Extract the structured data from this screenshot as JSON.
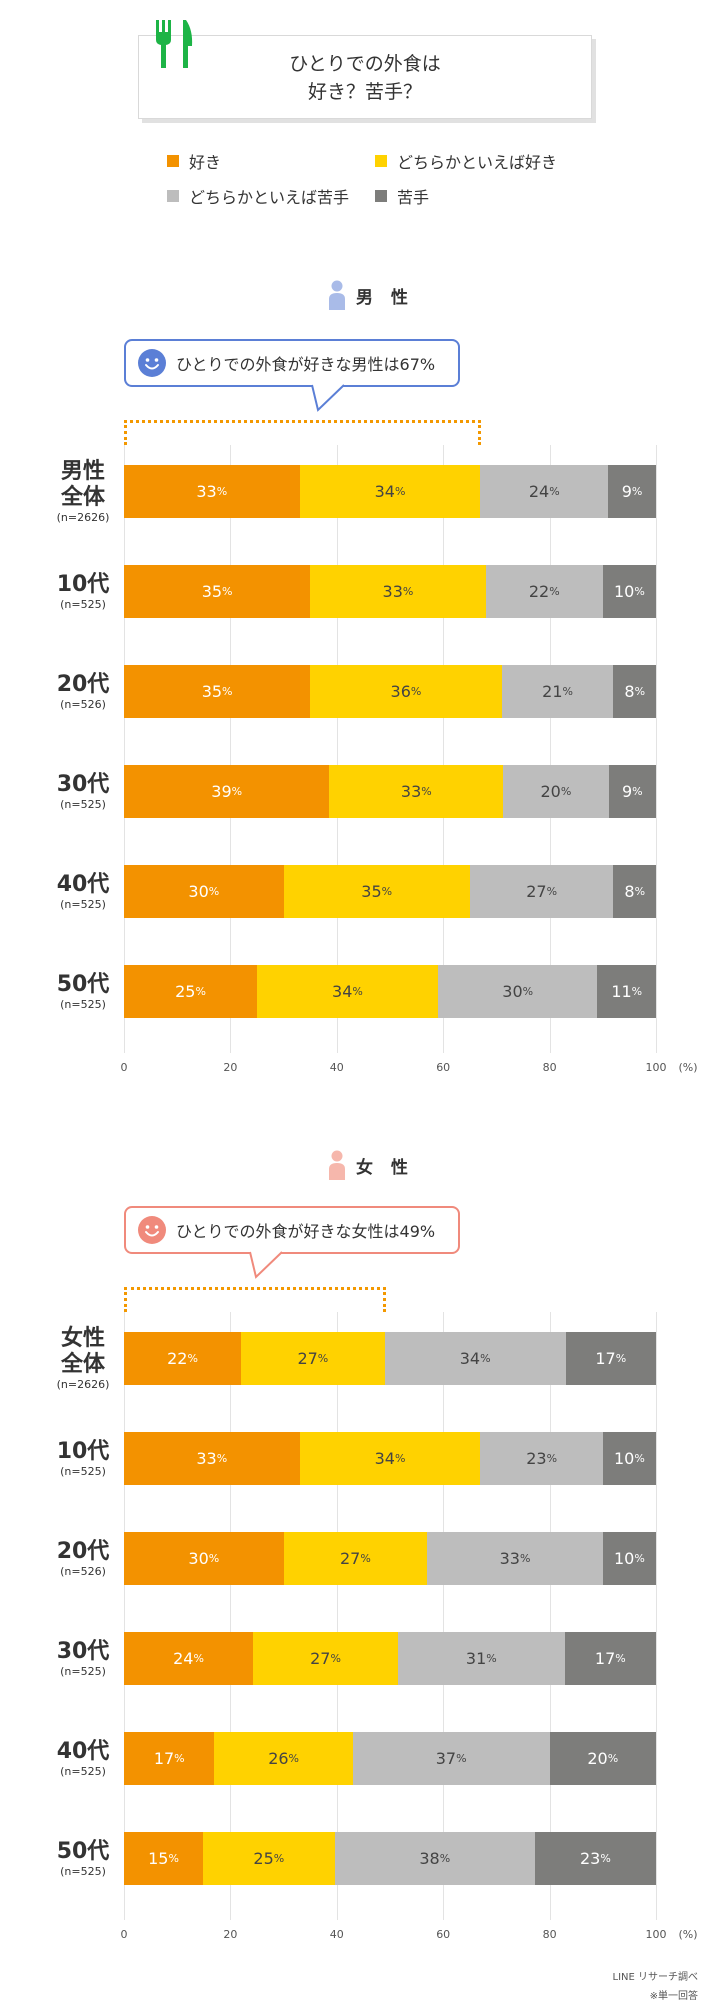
{
  "title": {
    "line1": "ひとりでの外食は",
    "line2": "好き？苦手？"
  },
  "legend": [
    {
      "label": "好き",
      "color": "#f39200"
    },
    {
      "label": "どちらかといえば好き",
      "color": "#ffd200"
    },
    {
      "label": "どちらかといえば苦手",
      "color": "#bdbdbd"
    },
    {
      "label": "苦手",
      "color": "#7d7d7b"
    }
  ],
  "chart_data": [
    {
      "type": "bar",
      "stacked": true,
      "orientation": "horizontal",
      "title": "男 性",
      "callout": "ひとりでの外食が好きな男性は67%",
      "categories": [
        "男性全体",
        "10代",
        "20代",
        "30代",
        "40代",
        "50代"
      ],
      "category_lines": [
        [
          "男性",
          "全体"
        ],
        [
          "10代"
        ],
        [
          "20代"
        ],
        [
          "30代"
        ],
        [
          "40代"
        ],
        [
          "50代"
        ]
      ],
      "sample_sizes": [
        "(n=2626)",
        "(n=525)",
        "(n=526)",
        "(n=525)",
        "(n=525)",
        "(n=525)"
      ],
      "series": [
        {
          "name": "好き",
          "values": [
            33,
            35,
            35,
            39,
            30,
            25
          ]
        },
        {
          "name": "どちらかといえば好き",
          "values": [
            34,
            33,
            36,
            33,
            35,
            34
          ]
        },
        {
          "name": "どちらかといえば苦手",
          "values": [
            24,
            22,
            21,
            20,
            27,
            30
          ]
        },
        {
          "name": "苦手",
          "values": [
            9,
            10,
            8,
            9,
            8,
            11
          ]
        }
      ],
      "xlim": [
        0,
        100
      ],
      "xticks": [
        0,
        20,
        40,
        60,
        80,
        100
      ],
      "xunit": "(%)",
      "grid": true,
      "legend_position": "top"
    },
    {
      "type": "bar",
      "stacked": true,
      "orientation": "horizontal",
      "title": "女 性",
      "callout": "ひとりでの外食が好きな女性は49%",
      "categories": [
        "女性全体",
        "10代",
        "20代",
        "30代",
        "40代",
        "50代"
      ],
      "category_lines": [
        [
          "女性",
          "全体"
        ],
        [
          "10代"
        ],
        [
          "20代"
        ],
        [
          "30代"
        ],
        [
          "40代"
        ],
        [
          "50代"
        ]
      ],
      "sample_sizes": [
        "(n=2626)",
        "(n=525)",
        "(n=526)",
        "(n=525)",
        "(n=525)",
        "(n=525)"
      ],
      "series": [
        {
          "name": "好き",
          "values": [
            22,
            33,
            30,
            24,
            17,
            15
          ]
        },
        {
          "name": "どちらかといえば好き",
          "values": [
            27,
            34,
            27,
            27,
            26,
            25
          ]
        },
        {
          "name": "どちらかといえば苦手",
          "values": [
            34,
            23,
            33,
            31,
            37,
            38
          ]
        },
        {
          "name": "苦手",
          "values": [
            17,
            10,
            10,
            17,
            20,
            23
          ]
        }
      ],
      "xlim": [
        0,
        100
      ],
      "xticks": [
        0,
        20,
        40,
        60,
        80,
        100
      ],
      "xunit": "(%)",
      "grid": true,
      "legend_position": "top"
    }
  ],
  "percent_sign": "%",
  "footnotes": [
    "LINE リサーチ調べ",
    "※単一回答"
  ],
  "colors": {
    "male_accent": "#5b7fd6",
    "female_accent": "#f08a7c",
    "bracket": "#f39800",
    "title_icon": "#1db446"
  },
  "icons": [
    "fork-knife-icon",
    "male-person-icon",
    "female-person-icon",
    "smile-face-icon"
  ]
}
